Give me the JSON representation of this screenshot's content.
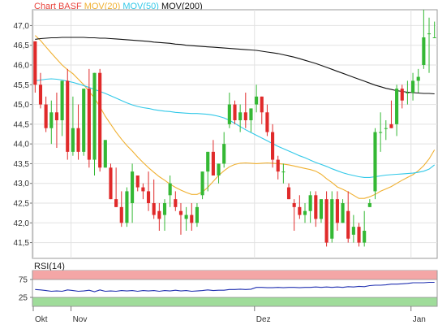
{
  "chart_data": [
    {
      "type": "candlestick",
      "legend": [
        {
          "label": "Chart BASF",
          "color": "#e8433c"
        },
        {
          "label": "MOV(20)",
          "color": "#f0b030"
        },
        {
          "label": "MOV(50)",
          "color": "#30c8e8"
        },
        {
          "label": "MOV(200)",
          "color": "#111111"
        }
      ],
      "ylim": [
        41.1,
        47.4
      ],
      "yticks": [
        "41,5",
        "42,0",
        "42,5",
        "43,0",
        "43,5",
        "44,0",
        "44,5",
        "45,0",
        "45,5",
        "46,0",
        "46,5",
        "47,0"
      ],
      "ytick_values": [
        41.5,
        42.0,
        42.5,
        43.0,
        43.5,
        44.0,
        44.5,
        45.0,
        45.5,
        46.0,
        46.5,
        47.0
      ],
      "xticks": [
        {
          "label": "Okt",
          "index": 0
        },
        {
          "label": "Nov",
          "index": 7
        },
        {
          "label": "Dez",
          "index": 41
        },
        {
          "label": "Jan",
          "index": 70
        }
      ],
      "candles": [
        [
          46.6,
          46.6,
          45.3,
          45.5
        ],
        [
          45.5,
          45.8,
          44.9,
          45.0
        ],
        [
          45.0,
          45.2,
          44.3,
          44.4
        ],
        [
          44.4,
          45.1,
          44.0,
          44.8
        ],
        [
          44.8,
          45.3,
          43.9,
          44.6
        ],
        [
          44.6,
          45.6,
          44.2,
          45.6
        ],
        [
          45.6,
          45.9,
          43.6,
          43.8
        ],
        [
          43.8,
          45.2,
          43.7,
          44.4
        ],
        [
          44.4,
          45.0,
          43.6,
          43.8
        ],
        [
          43.8,
          45.4,
          43.7,
          45.4
        ],
        [
          45.4,
          45.9,
          43.4,
          43.6
        ],
        [
          43.6,
          45.8,
          43.2,
          45.8
        ],
        [
          45.8,
          45.9,
          43.3,
          43.4
        ],
        [
          43.4,
          44.1,
          43.4,
          44.1
        ],
        [
          43.4,
          43.5,
          42.6,
          42.6
        ],
        [
          42.6,
          43.4,
          42.4,
          42.4
        ],
        [
          42.4,
          42.8,
          41.9,
          42.0
        ],
        [
          42.0,
          42.9,
          41.9,
          42.8
        ],
        [
          42.5,
          43.5,
          42.0,
          43.3
        ],
        [
          43.2,
          43.2,
          42.8,
          42.9
        ],
        [
          42.9,
          43.0,
          42.6,
          42.8
        ],
        [
          42.8,
          43.3,
          42.3,
          42.5
        ],
        [
          42.5,
          43.1,
          42.1,
          42.2
        ],
        [
          42.3,
          42.5,
          41.8,
          42.1
        ],
        [
          42.2,
          42.6,
          41.8,
          42.5
        ],
        [
          42.7,
          43.2,
          42.4,
          43.0
        ],
        [
          42.6,
          42.8,
          42.3,
          42.4
        ],
        [
          42.3,
          42.5,
          41.7,
          42.2
        ],
        [
          42.1,
          42.4,
          41.8,
          42.2
        ],
        [
          42.2,
          42.5,
          41.8,
          42.0
        ],
        [
          42.0,
          42.5,
          41.9,
          42.4
        ],
        [
          42.7,
          43.3,
          42.6,
          43.3
        ],
        [
          43.3,
          43.8,
          42.8,
          43.8
        ],
        [
          43.8,
          44.1,
          43.2,
          43.2
        ],
        [
          43.2,
          43.5,
          43.0,
          43.5
        ],
        [
          43.5,
          44.3,
          43.4,
          44.0
        ],
        [
          44.5,
          45.3,
          44.4,
          45.0
        ],
        [
          45.0,
          45.1,
          44.5,
          44.6
        ],
        [
          44.6,
          45.0,
          44.3,
          44.8
        ],
        [
          44.8,
          45.3,
          44.4,
          44.6
        ],
        [
          44.6,
          44.9,
          44.3,
          44.9
        ],
        [
          45.0,
          45.5,
          44.8,
          45.2
        ],
        [
          45.2,
          45.2,
          44.5,
          44.8
        ],
        [
          44.8,
          45.0,
          44.2,
          44.3
        ],
        [
          44.3,
          44.5,
          43.4,
          43.6
        ],
        [
          43.6,
          43.7,
          43.1,
          43.3
        ],
        [
          43.3,
          43.5,
          43.0,
          43.3
        ],
        [
          42.9,
          43.0,
          42.6,
          42.6
        ],
        [
          42.5,
          42.6,
          41.8,
          42.4
        ],
        [
          42.4,
          42.7,
          42.1,
          42.2
        ],
        [
          42.2,
          42.5,
          42.0,
          42.3
        ],
        [
          42.3,
          42.8,
          42.0,
          42.7
        ],
        [
          42.7,
          42.8,
          41.9,
          42.1
        ],
        [
          42.1,
          42.6,
          42.0,
          42.6
        ],
        [
          42.6,
          42.8,
          41.4,
          41.5
        ],
        [
          41.6,
          42.8,
          41.5,
          42.6
        ],
        [
          42.6,
          42.8,
          41.8,
          42.0
        ],
        [
          42.0,
          42.6,
          42.0,
          42.5
        ],
        [
          42.3,
          42.8,
          41.5,
          41.6
        ],
        [
          41.7,
          42.2,
          41.5,
          41.9
        ],
        [
          41.9,
          42.0,
          41.4,
          41.5
        ],
        [
          41.5,
          42.3,
          41.4,
          41.8
        ],
        [
          42.4,
          42.6,
          42.4,
          42.5
        ],
        [
          42.8,
          44.4,
          42.6,
          44.3
        ],
        [
          44.3,
          44.8,
          43.8,
          44.3
        ],
        [
          44.4,
          44.6,
          44.1,
          44.4
        ],
        [
          44.5,
          45.1,
          44.4,
          44.4
        ],
        [
          44.5,
          45.5,
          44.2,
          45.4
        ],
        [
          45.4,
          45.5,
          44.9,
          45.1
        ],
        [
          45.3,
          45.6,
          45.0,
          45.3
        ],
        [
          45.3,
          45.8,
          45.1,
          45.6
        ],
        [
          45.6,
          45.9,
          45.3,
          45.7
        ],
        [
          46.0,
          47.4,
          45.9,
          46.7
        ],
        [
          46.8,
          47.2,
          45.8,
          46.8
        ],
        [
          46.7,
          47.1,
          46.7,
          46.7
        ]
      ],
      "mov20": [
        46.75,
        46.62,
        46.46,
        46.3,
        46.15,
        46.0,
        45.88,
        45.78,
        45.64,
        45.5,
        45.33,
        45.16,
        44.94,
        44.7,
        44.5,
        44.3,
        44.12,
        43.96,
        43.82,
        43.67,
        43.53,
        43.4,
        43.28,
        43.17,
        43.08,
        42.98,
        42.9,
        42.83,
        42.77,
        42.72,
        42.72,
        42.78,
        42.9,
        43.05,
        43.2,
        43.32,
        43.42,
        43.48,
        43.51,
        43.52,
        43.51,
        43.5,
        43.51,
        43.52,
        43.51,
        43.5,
        43.49,
        43.47,
        43.44,
        43.41,
        43.38,
        43.35,
        43.31,
        43.23,
        43.12,
        43.02,
        42.91,
        42.85,
        42.78,
        42.7,
        42.62,
        42.62,
        42.66,
        42.72,
        42.8,
        42.86,
        42.92,
        43.0,
        43.08,
        43.15,
        43.22,
        43.32,
        43.45,
        43.62,
        43.85
      ],
      "mov50": [
        45.6,
        45.62,
        45.64,
        45.65,
        45.64,
        45.62,
        45.59,
        45.56,
        45.52,
        45.48,
        45.43,
        45.38,
        45.33,
        45.28,
        45.22,
        45.16,
        45.1,
        45.04,
        44.99,
        44.95,
        44.92,
        44.9,
        44.87,
        44.85,
        44.83,
        44.82,
        44.8,
        44.79,
        44.78,
        44.77,
        44.77,
        44.76,
        44.75,
        44.73,
        44.7,
        44.66,
        44.6,
        44.52,
        44.44,
        44.36,
        44.29,
        44.22,
        44.15,
        44.08,
        44.01,
        43.94,
        43.88,
        43.82,
        43.76,
        43.7,
        43.65,
        43.59,
        43.53,
        43.48,
        43.43,
        43.37,
        43.32,
        43.27,
        43.23,
        43.2,
        43.17,
        43.15,
        43.15,
        43.17,
        43.19,
        43.21,
        43.22,
        43.23,
        43.24,
        43.25,
        43.26,
        43.28,
        43.31,
        43.36,
        43.47
      ],
      "mov200": [
        46.65,
        46.67,
        46.68,
        46.69,
        46.69,
        46.7,
        46.7,
        46.7,
        46.7,
        46.7,
        46.69,
        46.69,
        46.68,
        46.68,
        46.67,
        46.66,
        46.65,
        46.64,
        46.63,
        46.62,
        46.61,
        46.6,
        46.58,
        46.57,
        46.56,
        46.55,
        46.53,
        46.52,
        46.5,
        46.49,
        46.48,
        46.47,
        46.46,
        46.45,
        46.44,
        46.43,
        46.42,
        46.41,
        46.4,
        46.39,
        46.38,
        46.37,
        46.35,
        46.33,
        46.31,
        46.29,
        46.26,
        46.23,
        46.2,
        46.16,
        46.12,
        46.08,
        46.04,
        45.99,
        45.94,
        45.89,
        45.84,
        45.79,
        45.74,
        45.69,
        45.64,
        45.59,
        45.54,
        45.49,
        45.45,
        45.41,
        45.38,
        45.35,
        45.33,
        45.31,
        45.3,
        45.29,
        45.28,
        45.28,
        45.27
      ]
    },
    {
      "type": "line",
      "legend": [
        {
          "label": "RSI(14)",
          "color": "#2030b0"
        }
      ],
      "ylim": [
        0,
        100
      ],
      "yticks": [
        "25",
        "75"
      ],
      "ytick_values": [
        25,
        75
      ],
      "bands": [
        {
          "from": 75,
          "to": 100,
          "color": "#f4a6a6"
        },
        {
          "from": 0,
          "to": 25,
          "color": "#9fdc9a"
        }
      ],
      "values": [
        47,
        46,
        44,
        42,
        43,
        42,
        46,
        44,
        42,
        43,
        45,
        41,
        46,
        42,
        43,
        42,
        44,
        43,
        44,
        42,
        44,
        43,
        44,
        42,
        44,
        43,
        45,
        43,
        44,
        42,
        43,
        44,
        46,
        44,
        45,
        45,
        47,
        47,
        48,
        47,
        48,
        53,
        53,
        52,
        52,
        53,
        52,
        53,
        53,
        52,
        53,
        53,
        54,
        53,
        54,
        53,
        54,
        53,
        55,
        54,
        56,
        55,
        58,
        59,
        59,
        60,
        62,
        62,
        63,
        64,
        66,
        66,
        66,
        67,
        67
      ]
    }
  ]
}
